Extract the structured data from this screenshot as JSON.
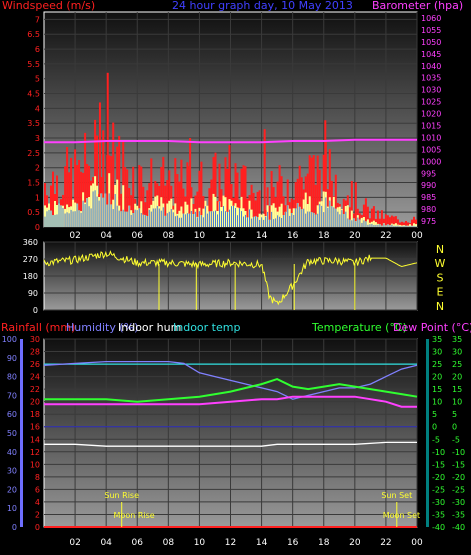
{
  "colors": {
    "wind": "#ff2020",
    "gust": "#ffff99",
    "avg_wind": "#4a7fd0",
    "pressure": "#ff40ff",
    "direction": "#ffff30",
    "rain": "#ff2020",
    "humidity": "#8080ff",
    "indoor_hum": "#ffffff",
    "indoor_temp": "#30e0e0",
    "temperature": "#30ff30",
    "dew_point": "#ff40ff",
    "sun": "#ffff30",
    "axis_blue": "#6f6fff",
    "axis_temp": "#30ff30"
  },
  "chart_data": [
    {
      "type": "line",
      "title": "24 hour graph day, 10 May 2013",
      "ylabel_left": "Windspeed (m/s)",
      "ylabel_right": "Barometer (hpa)",
      "x_ticks": [
        "02",
        "04",
        "06",
        "08",
        "10",
        "12",
        "14",
        "16",
        "18",
        "20",
        "22",
        "00"
      ],
      "wind_ticks": [
        "7",
        "6.5",
        "6",
        "5.5",
        "5",
        "4.5",
        "4",
        "3.5",
        "3",
        "2.5",
        "2",
        "1.5",
        "1",
        "0.5",
        "0"
      ],
      "wind_ylim": [
        0,
        7.25
      ],
      "pressure_ticks": [
        "1060",
        "1055",
        "1050",
        "1045",
        "1040",
        "1035",
        "1030",
        "1025",
        "1020",
        "1015",
        "1010",
        "1005",
        "1000",
        "995",
        "990",
        "985",
        "980",
        "975"
      ],
      "pressure_ylim": [
        972.5,
        1062.5
      ],
      "series": [
        {
          "name": "",
          "key": "pressure",
          "x": [
            0,
            2,
            4,
            6,
            8,
            10,
            12,
            14,
            16,
            18,
            20,
            22,
            24
          ],
          "values": [
            1008,
            1008,
            1008.5,
            1008.5,
            1008.5,
            1008,
            1008,
            1008,
            1008.5,
            1008.5,
            1009,
            1009,
            1009
          ]
        },
        {
          "name": "",
          "key": "gust",
          "x": [
            0,
            2,
            4,
            6,
            8,
            10,
            12,
            14,
            16,
            18,
            20,
            21,
            22,
            23,
            24
          ],
          "values": [
            1.8,
            2.2,
            3.2,
            2.0,
            1.8,
            1.8,
            2.2,
            1.2,
            2.0,
            2.4,
            1.2,
            0.6,
            0.4,
            0.3,
            0.3
          ]
        },
        {
          "name": "",
          "key": "wind",
          "x": [
            0,
            2,
            4,
            6,
            8,
            10,
            12,
            14,
            16,
            18,
            20,
            21,
            22,
            23,
            24
          ],
          "values": [
            0.8,
            1.0,
            1.6,
            0.9,
            0.8,
            0.8,
            1.0,
            0.5,
            0.9,
            1.1,
            0.5,
            0.2,
            0.1,
            0.1,
            0.1
          ]
        },
        {
          "name": "",
          "key": "avg_wind",
          "x": [
            0,
            2,
            4,
            6,
            8,
            10,
            12,
            14,
            16,
            18,
            20,
            21,
            22,
            23,
            24
          ],
          "values": [
            0.6,
            0.8,
            1.3,
            0.7,
            0.6,
            0.6,
            0.8,
            0.4,
            0.7,
            0.9,
            0.4,
            0.1,
            0.1,
            0.05,
            0.05
          ]
        }
      ]
    },
    {
      "type": "line",
      "title": "",
      "y_ticks": [
        "360",
        "270",
        "180",
        "90",
        "0"
      ],
      "y_labels_right": [
        "N",
        "W",
        "S",
        "E",
        "N"
      ],
      "ylim": [
        0,
        360
      ],
      "x_ticks": [
        "02",
        "04",
        "06",
        "08",
        "10",
        "12",
        "14",
        "16",
        "18",
        "20",
        "22",
        "00"
      ],
      "series": [
        {
          "name": "",
          "key": "direction",
          "x": [
            0,
            2,
            4,
            6,
            8,
            10,
            12,
            14,
            14.5,
            15,
            16,
            17,
            18,
            19,
            20,
            21,
            22,
            23,
            24
          ],
          "values": [
            250,
            265,
            300,
            250,
            250,
            240,
            250,
            240,
            70,
            30,
            130,
            260,
            260,
            260,
            250,
            275,
            275,
            230,
            250
          ]
        }
      ]
    },
    {
      "type": "line",
      "title": "",
      "legend": [
        "Rainfall (mm)",
        "Humidity (%)",
        "Indoor hum",
        "Indoor temp",
        "Temperature (°C)",
        "Dew Point (°C)"
      ],
      "rain_ticks": [
        "30",
        "28",
        "26",
        "24",
        "22",
        "20",
        "18",
        "16",
        "14",
        "12",
        "10",
        "8",
        "6",
        "4",
        "2",
        "0"
      ],
      "rain_ylim": [
        0,
        30
      ],
      "humidity_ticks": [
        "100",
        "90",
        "80",
        "70",
        "60",
        "50",
        "40",
        "30",
        "20",
        "10",
        "0"
      ],
      "humidity_ylim": [
        0,
        100
      ],
      "temp_ticks_left": [
        "35",
        "30",
        "25",
        "20",
        "15",
        "10",
        "5",
        "0",
        "-5",
        "-10",
        "-15",
        "-20",
        "-25",
        "-30",
        "-35",
        "-40"
      ],
      "temp_ticks_right": [
        "35",
        "30",
        "25",
        "20",
        "15",
        "10",
        "5",
        "0",
        "-5",
        "-10",
        "-15",
        "-20",
        "-25",
        "-30",
        "-35",
        "-40"
      ],
      "temp_ylim": [
        -40,
        35
      ],
      "x_ticks": [
        "02",
        "04",
        "06",
        "08",
        "10",
        "12",
        "14",
        "16",
        "18",
        "20",
        "22",
        "00"
      ],
      "annotations": {
        "sun_rise": "Sun Rise",
        "sun_set": "Sun Set",
        "moon_rise": "Moon Rise",
        "moon_set": "Moon Set",
        "sun_rise_x": 5.0,
        "sun_set_x": 22.7,
        "moon_rise_x": 5.8,
        "moon_set_x": 23.0
      },
      "series": [
        {
          "name": "Rainfall (mm)",
          "key": "rain",
          "x": [
            0,
            24
          ],
          "values": [
            0,
            0
          ]
        },
        {
          "name": "Humidity (%)",
          "key": "humidity",
          "x": [
            0,
            2,
            4,
            6,
            8,
            9,
            10,
            11,
            12,
            13,
            14,
            15,
            16,
            17,
            18,
            19,
            20,
            21,
            22,
            23,
            24
          ],
          "values": [
            86,
            87,
            88,
            88,
            88,
            87,
            82,
            80,
            78,
            76,
            74,
            72,
            68,
            70,
            72,
            74,
            74,
            76,
            80,
            84,
            86
          ]
        },
        {
          "name": "Indoor hum",
          "key": "indoor_hum",
          "x": [
            0,
            2,
            4,
            6,
            8,
            10,
            12,
            14,
            15,
            16,
            18,
            20,
            22,
            24
          ],
          "values": [
            44,
            44,
            43,
            43,
            43,
            43,
            43,
            43,
            44,
            44,
            44,
            44,
            45,
            45
          ]
        },
        {
          "name": "Indoor temp",
          "key": "indoor_temp",
          "x": [
            0,
            2,
            4,
            6,
            8,
            10,
            12,
            14,
            16,
            18,
            20,
            22,
            24
          ],
          "values": [
            25,
            25,
            25,
            25,
            25,
            25,
            25,
            25,
            25,
            25,
            25,
            25,
            25
          ]
        },
        {
          "name": "Temperature (°C)",
          "key": "temperature",
          "x": [
            0,
            2,
            4,
            6,
            8,
            10,
            12,
            14,
            15,
            16,
            17,
            18,
            19,
            20,
            21,
            22,
            23,
            24
          ],
          "values": [
            11,
            11,
            11,
            10,
            11,
            12,
            14,
            17,
            19,
            16,
            15,
            16,
            17,
            16,
            15,
            14,
            13,
            12
          ]
        },
        {
          "name": "Dew Point (°C)",
          "key": "dew_point",
          "x": [
            0,
            2,
            4,
            6,
            8,
            10,
            12,
            14,
            15,
            16,
            17,
            18,
            19,
            20,
            21,
            22,
            23,
            24
          ],
          "values": [
            9,
            9,
            9,
            9,
            9,
            9,
            10,
            11,
            11,
            12,
            12,
            12,
            12,
            12,
            11,
            10,
            8,
            8
          ]
        }
      ]
    }
  ]
}
